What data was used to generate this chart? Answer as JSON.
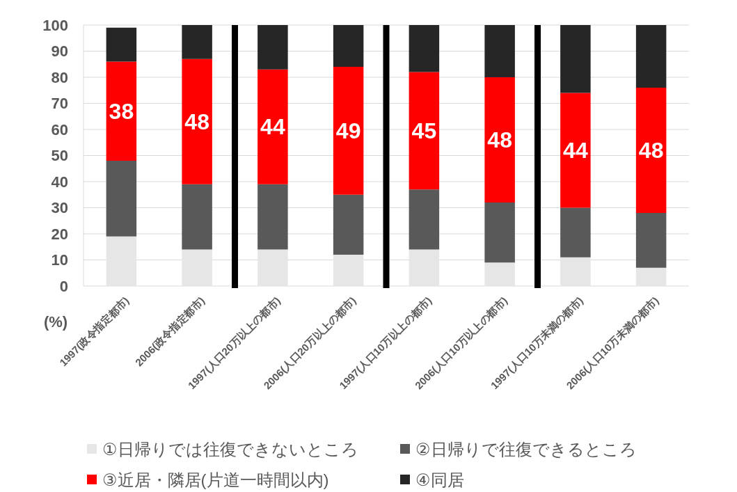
{
  "chart_data": {
    "type": "bar",
    "stacked": true,
    "ylabel": "(%)",
    "categories": [
      "1997(政令指定都市)",
      "2006(政令指定都市)",
      "1997(人口20万以上の都市)",
      "2006(人口20万以上の都市)",
      "1997(人口10万以上の都市)",
      "2006(人口10万以上の都市)",
      "1997(人口10万未満の都市)",
      "2006(人口10万未満の都市)"
    ],
    "series": [
      {
        "name": "①日帰りでは往復できないところ",
        "color": "#e6e6e6",
        "values": [
          19,
          14,
          14,
          12,
          14,
          9,
          11,
          7
        ]
      },
      {
        "name": "②日帰りで往復できるところ",
        "color": "#595959",
        "values": [
          29,
          25,
          25,
          23,
          23,
          23,
          19,
          21
        ]
      },
      {
        "name": "③近居・隣居(片道一時間以内)",
        "color": "#ff0000",
        "values": [
          38,
          48,
          44,
          49,
          45,
          48,
          44,
          48
        ],
        "value_labels": [
          "38",
          "48",
          "44",
          "49",
          "45",
          "48",
          "44",
          "48"
        ]
      },
      {
        "name": "④同居",
        "color": "#262626",
        "values": [
          13,
          13,
          17,
          16,
          18,
          20,
          26,
          24
        ]
      }
    ],
    "ylim": [
      0,
      100
    ],
    "yticks": [
      0,
      10,
      20,
      30,
      40,
      50,
      60,
      70,
      80,
      90,
      100
    ],
    "grid": "y",
    "legend": "bottom"
  }
}
